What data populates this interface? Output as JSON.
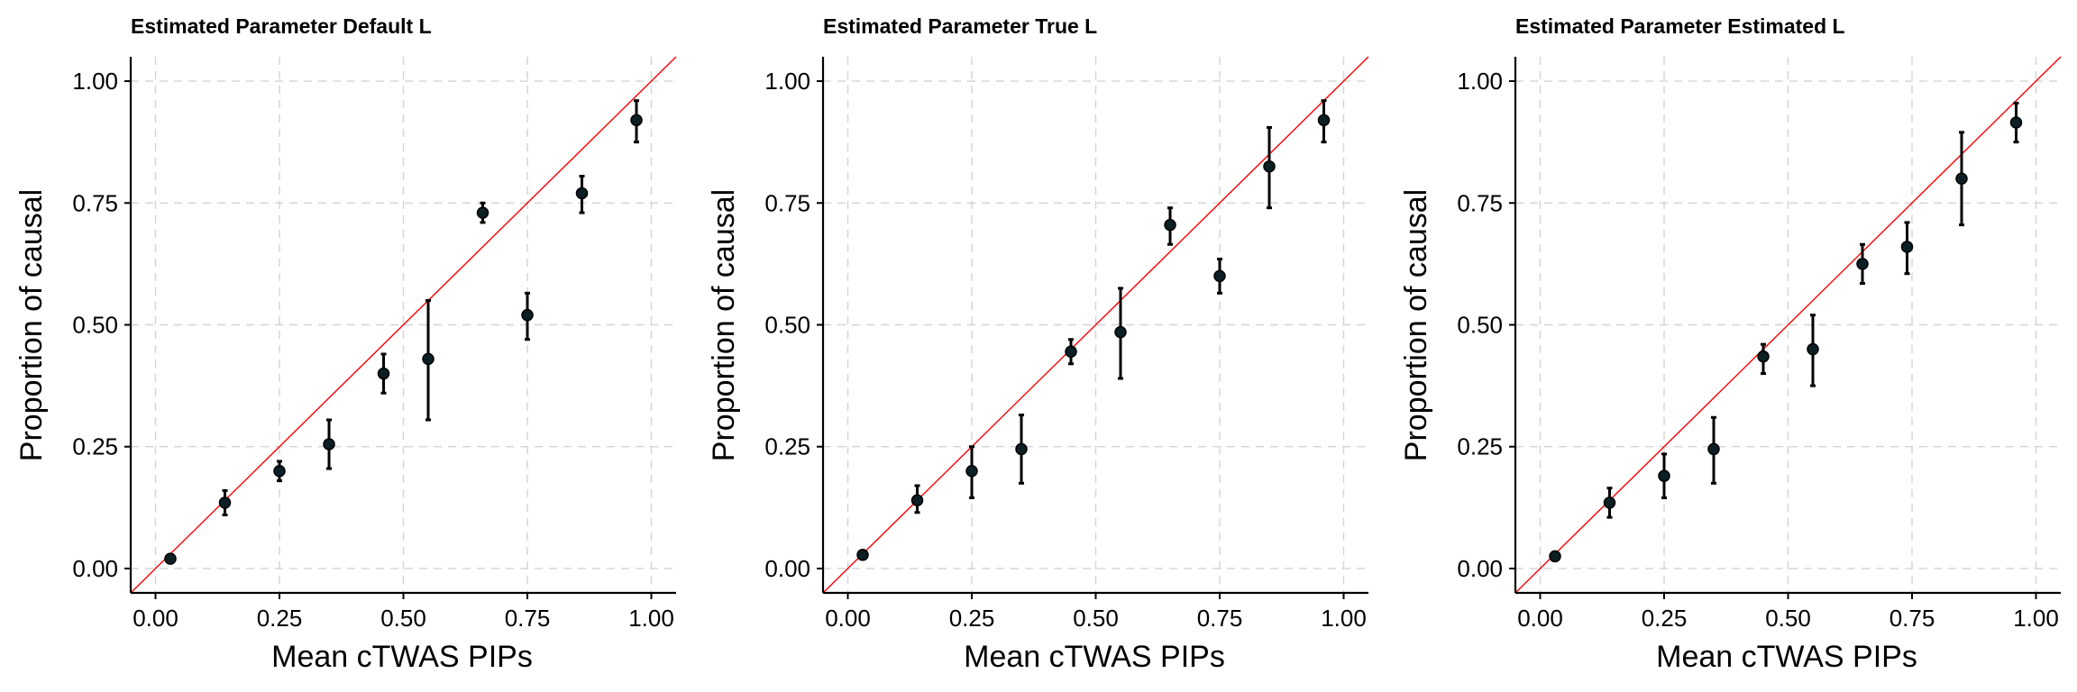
{
  "colors": {
    "point": "#0b1f24",
    "reference_line": "#ff0000",
    "grid": "#d3d3d3",
    "axis": "#000000"
  },
  "chart_data": [
    {
      "type": "scatter",
      "title": "Estimated Parameter Default L",
      "xlabel": "Mean cTWAS PIPs",
      "ylabel": "Proportion of causal",
      "xlim": [
        -0.05,
        1.05
      ],
      "ylim": [
        -0.05,
        1.05
      ],
      "xticks": [
        0,
        0.25,
        0.5,
        0.75,
        1
      ],
      "xtick_labels": [
        "0.00",
        "0.25",
        "0.50",
        "0.75",
        "1.00"
      ],
      "yticks": [
        0,
        0.25,
        0.5,
        0.75,
        1
      ],
      "ytick_labels": [
        "0.00",
        "0.25",
        "0.50",
        "0.75",
        "1.00"
      ],
      "grid": true,
      "reference_line": "y = x",
      "points": [
        {
          "x": 0.03,
          "y": 0.02,
          "lo": 0.015,
          "hi": 0.025
        },
        {
          "x": 0.14,
          "y": 0.135,
          "lo": 0.11,
          "hi": 0.16
        },
        {
          "x": 0.25,
          "y": 0.2,
          "lo": 0.18,
          "hi": 0.22
        },
        {
          "x": 0.35,
          "y": 0.255,
          "lo": 0.205,
          "hi": 0.305
        },
        {
          "x": 0.46,
          "y": 0.4,
          "lo": 0.36,
          "hi": 0.44
        },
        {
          "x": 0.55,
          "y": 0.43,
          "lo": 0.305,
          "hi": 0.55
        },
        {
          "x": 0.66,
          "y": 0.73,
          "lo": 0.71,
          "hi": 0.75
        },
        {
          "x": 0.75,
          "y": 0.52,
          "lo": 0.47,
          "hi": 0.565
        },
        {
          "x": 0.86,
          "y": 0.77,
          "lo": 0.73,
          "hi": 0.805
        },
        {
          "x": 0.97,
          "y": 0.92,
          "lo": 0.875,
          "hi": 0.96
        }
      ]
    },
    {
      "type": "scatter",
      "title": "Estimated Parameter True L",
      "xlabel": "Mean cTWAS PIPs",
      "ylabel": "Proportion of causal",
      "xlim": [
        -0.05,
        1.05
      ],
      "ylim": [
        -0.05,
        1.05
      ],
      "xticks": [
        0,
        0.25,
        0.5,
        0.75,
        1
      ],
      "xtick_labels": [
        "0.00",
        "0.25",
        "0.50",
        "0.75",
        "1.00"
      ],
      "yticks": [
        0,
        0.25,
        0.5,
        0.75,
        1
      ],
      "ytick_labels": [
        "0.00",
        "0.25",
        "0.50",
        "0.75",
        "1.00"
      ],
      "grid": true,
      "reference_line": "y = x",
      "points": [
        {
          "x": 0.03,
          "y": 0.028,
          "lo": 0.022,
          "hi": 0.034
        },
        {
          "x": 0.14,
          "y": 0.14,
          "lo": 0.115,
          "hi": 0.17
        },
        {
          "x": 0.25,
          "y": 0.2,
          "lo": 0.145,
          "hi": 0.25
        },
        {
          "x": 0.35,
          "y": 0.245,
          "lo": 0.175,
          "hi": 0.315
        },
        {
          "x": 0.45,
          "y": 0.445,
          "lo": 0.42,
          "hi": 0.47
        },
        {
          "x": 0.55,
          "y": 0.485,
          "lo": 0.39,
          "hi": 0.575
        },
        {
          "x": 0.65,
          "y": 0.705,
          "lo": 0.665,
          "hi": 0.74
        },
        {
          "x": 0.75,
          "y": 0.6,
          "lo": 0.565,
          "hi": 0.635
        },
        {
          "x": 0.85,
          "y": 0.825,
          "lo": 0.74,
          "hi": 0.905
        },
        {
          "x": 0.96,
          "y": 0.92,
          "lo": 0.875,
          "hi": 0.96
        }
      ]
    },
    {
      "type": "scatter",
      "title": "Estimated Parameter Estimated L",
      "xlabel": "Mean cTWAS PIPs",
      "ylabel": "Proportion of causal",
      "xlim": [
        -0.05,
        1.05
      ],
      "ylim": [
        -0.05,
        1.05
      ],
      "xticks": [
        0,
        0.25,
        0.5,
        0.75,
        1
      ],
      "xtick_labels": [
        "0.00",
        "0.25",
        "0.50",
        "0.75",
        "1.00"
      ],
      "yticks": [
        0,
        0.25,
        0.5,
        0.75,
        1
      ],
      "ytick_labels": [
        "0.00",
        "0.25",
        "0.50",
        "0.75",
        "1.00"
      ],
      "grid": true,
      "reference_line": "y = x",
      "points": [
        {
          "x": 0.03,
          "y": 0.025,
          "lo": 0.02,
          "hi": 0.03
        },
        {
          "x": 0.14,
          "y": 0.135,
          "lo": 0.105,
          "hi": 0.165
        },
        {
          "x": 0.25,
          "y": 0.19,
          "lo": 0.145,
          "hi": 0.235
        },
        {
          "x": 0.35,
          "y": 0.245,
          "lo": 0.175,
          "hi": 0.31
        },
        {
          "x": 0.45,
          "y": 0.435,
          "lo": 0.4,
          "hi": 0.46
        },
        {
          "x": 0.55,
          "y": 0.45,
          "lo": 0.375,
          "hi": 0.52
        },
        {
          "x": 0.65,
          "y": 0.625,
          "lo": 0.585,
          "hi": 0.665
        },
        {
          "x": 0.74,
          "y": 0.66,
          "lo": 0.605,
          "hi": 0.71
        },
        {
          "x": 0.85,
          "y": 0.8,
          "lo": 0.705,
          "hi": 0.895
        },
        {
          "x": 0.96,
          "y": 0.915,
          "lo": 0.875,
          "hi": 0.955
        }
      ]
    }
  ]
}
